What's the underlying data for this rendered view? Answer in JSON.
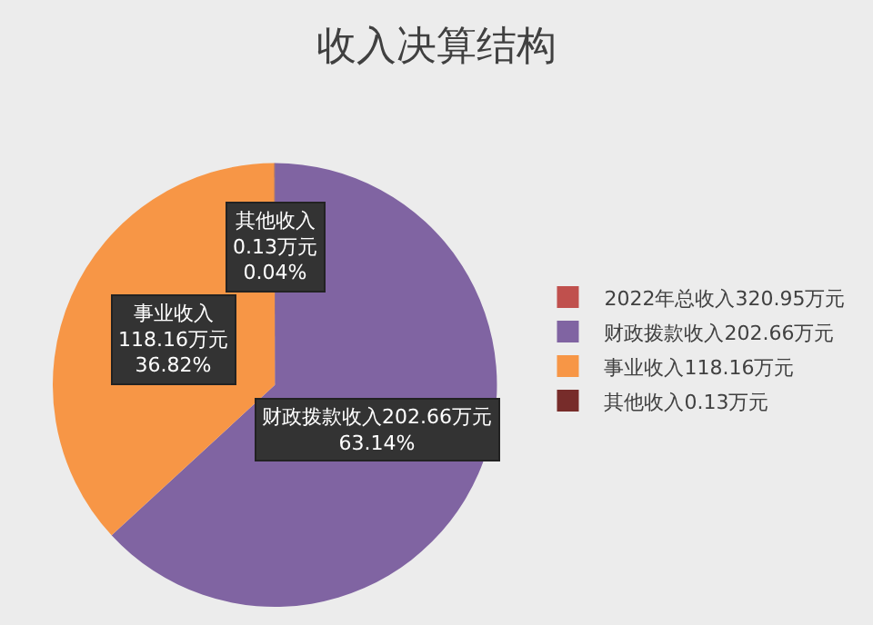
{
  "chart_data": {
    "type": "pie",
    "title": "收入决算结构",
    "categories": [
      "2022年总收入320.95万元",
      "财政拨款收入202.66万元",
      "事业收入118.16万元",
      "其他收入0.13万元"
    ],
    "values": [
      0,
      202.66,
      118.16,
      0.13
    ],
    "colors": [
      "#c0504d",
      "#8064a2",
      "#f79646",
      "#772c2a"
    ],
    "value_labels": [
      null,
      "财政拨款收入202.66万元\n63.14%",
      "事业收入\n118.16万元\n36.82%",
      "其他收入\n0.13万元\n0.04%"
    ],
    "legend": "right"
  }
}
